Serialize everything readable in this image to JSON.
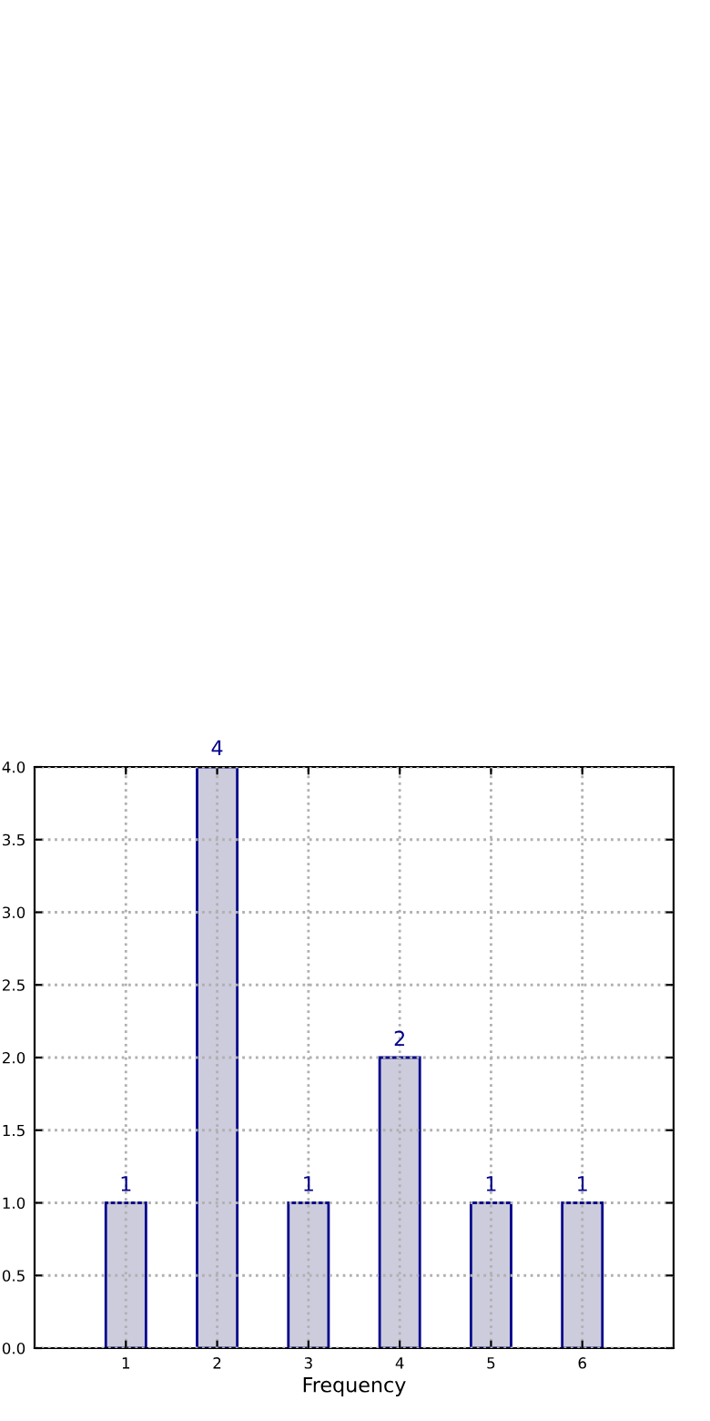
{
  "chart_data": {
    "type": "bar",
    "xlabel": "Frequency",
    "x": [
      1,
      2,
      3,
      4,
      5,
      6
    ],
    "values": [
      1,
      4,
      1,
      2,
      1,
      1
    ],
    "color": "#ccccdd",
    "xlim": [
      0,
      7
    ],
    "xticks": [
      1,
      2,
      3,
      4,
      5,
      6
    ],
    "ylim": [
      0,
      4
    ],
    "yticks": [
      {
        "value": 0,
        "label": "0.0"
      },
      {
        "value": 0.5,
        "label": "0.5"
      },
      {
        "value": 1,
        "label": "1.0"
      },
      {
        "value": 1.5,
        "label": "1.5"
      },
      {
        "value": 2,
        "label": "2.0"
      },
      {
        "value": 2.5,
        "label": "2.5"
      },
      {
        "value": 3,
        "label": "3.0"
      },
      {
        "value": 3.5,
        "label": "3.5"
      },
      {
        "value": 4,
        "label": "4.0"
      }
    ],
    "grid": true,
    "data_labels": true
  }
}
